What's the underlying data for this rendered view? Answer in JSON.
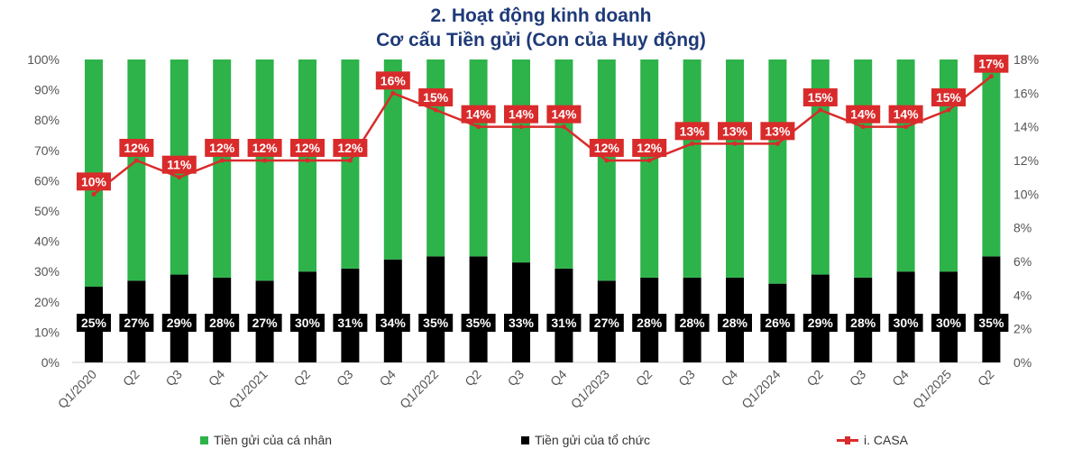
{
  "title_line1": "2. Hoạt động kinh doanh",
  "title_line2": "Cơ cấu Tiền gửi (Con của Huy động)",
  "chart_data": {
    "type": "bar",
    "stacked": true,
    "categories": [
      "Q1/2020",
      "Q2",
      "Q3",
      "Q4",
      "Q1/2021",
      "Q2",
      "Q3",
      "Q4",
      "Q1/2022",
      "Q2",
      "Q3",
      "Q4",
      "Q1/2023",
      "Q2",
      "Q3",
      "Q4",
      "Q1/2024",
      "Q2",
      "Q3",
      "Q4",
      "Q1/2025",
      "Q2"
    ],
    "series": [
      {
        "name": "Tiền gửi của tổ chức",
        "axis": "left",
        "color": "#000000",
        "values": [
          25,
          27,
          29,
          28,
          27,
          30,
          31,
          34,
          35,
          35,
          33,
          31,
          27,
          28,
          28,
          28,
          26,
          29,
          28,
          30,
          30,
          35
        ]
      },
      {
        "name": "Tiền gửi của cá nhân",
        "axis": "left",
        "color": "#2db34a",
        "values": [
          75,
          73,
          71,
          72,
          73,
          70,
          69,
          66,
          65,
          65,
          67,
          69,
          73,
          72,
          72,
          72,
          74,
          71,
          72,
          70,
          70,
          65
        ]
      },
      {
        "name": "i. CASA",
        "axis": "right",
        "type": "line",
        "color": "#d92b2b",
        "values": [
          10,
          12,
          11,
          12,
          12,
          12,
          12,
          16,
          15,
          14,
          14,
          14,
          12,
          12,
          13,
          13,
          13,
          15,
          14,
          14,
          15,
          17
        ]
      }
    ],
    "y_left": {
      "min": 0,
      "max": 100,
      "step": 10,
      "unit": "%"
    },
    "y_right": {
      "min": 0,
      "max": 18,
      "step": 2,
      "unit": "%"
    },
    "legend": {
      "position": "bottom",
      "items": [
        {
          "label": "Tiền gửi của cá nhân",
          "color": "#2db34a",
          "shape": "square"
        },
        {
          "label": "Tiền gửi của tổ chức",
          "color": "#000000",
          "shape": "square"
        },
        {
          "label": "i. CASA",
          "color": "#d92b2b",
          "shape": "line"
        }
      ]
    },
    "grid": false
  }
}
